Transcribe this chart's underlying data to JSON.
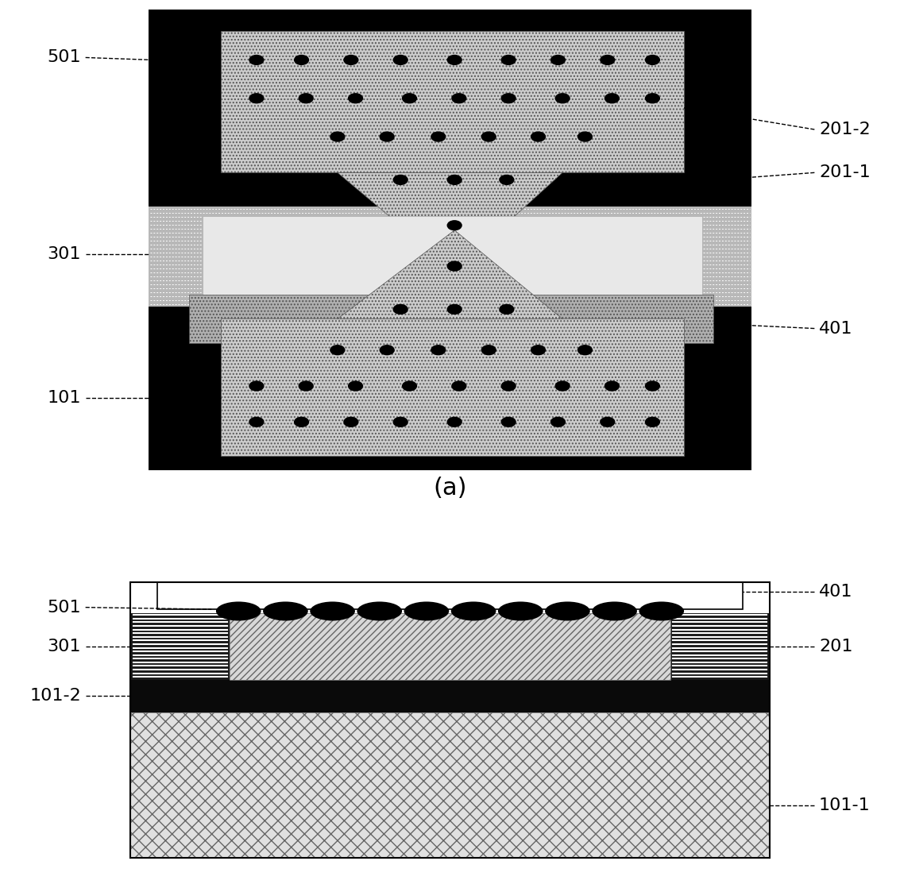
{
  "fig_width": 11.33,
  "fig_height": 11.18,
  "dpi": 100,
  "label_fontsize": 16,
  "title_fontsize": 22
}
